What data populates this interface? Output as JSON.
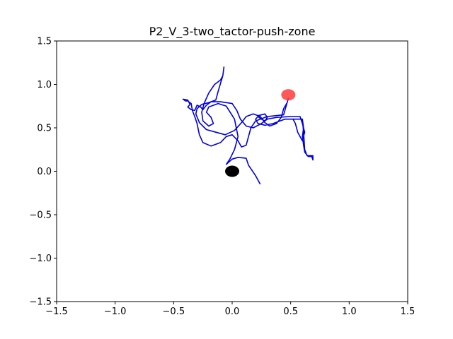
{
  "chart_data": {
    "type": "line",
    "title": "P2_V_3-two_tactor-push-zone",
    "xlabel": "",
    "ylabel": "",
    "xlim": [
      -1.5,
      1.5
    ],
    "ylim": [
      -1.5,
      1.5
    ],
    "xticks": [
      -1.5,
      -1.0,
      -0.5,
      0.0,
      0.5,
      1.0,
      1.5
    ],
    "yticks": [
      -1.5,
      -1.0,
      -0.5,
      0.0,
      0.5,
      1.0,
      1.5
    ],
    "xtick_labels": [
      "−1.5",
      "−1.0",
      "−0.5",
      "0.0",
      "0.5",
      "1.0",
      "1.5"
    ],
    "ytick_labels": [
      "−1.5",
      "−1.0",
      "−0.5",
      "0.0",
      "0.5",
      "1.0",
      "1.5"
    ],
    "grid": false,
    "colors": {
      "trajectory": "#0000dd",
      "start_marker": "#000000",
      "target_marker": "#ff3b3b"
    },
    "series": [
      {
        "points": [
          [
            0.24,
            -0.15
          ],
          [
            0.2,
            -0.05
          ],
          [
            0.14,
            0.07
          ],
          [
            0.12,
            0.15
          ],
          [
            0.05,
            0.16
          ],
          [
            0.0,
            0.14
          ],
          [
            -0.05,
            0.08
          ],
          [
            -0.02,
            0.14
          ],
          [
            0.02,
            0.25
          ],
          [
            0.05,
            0.4
          ],
          [
            0.02,
            0.6
          ],
          [
            -0.05,
            0.75
          ],
          [
            -0.12,
            0.78
          ],
          [
            -0.2,
            0.74
          ],
          [
            -0.22,
            0.68
          ],
          [
            -0.18,
            0.62
          ],
          [
            -0.16,
            0.55
          ],
          [
            -0.2,
            0.52
          ],
          [
            -0.25,
            0.58
          ],
          [
            -0.26,
            0.68
          ],
          [
            -0.24,
            0.78
          ],
          [
            -0.2,
            0.9
          ],
          [
            -0.15,
            1.0
          ],
          [
            -0.1,
            1.05
          ],
          [
            -0.08,
            1.1
          ],
          [
            -0.07,
            1.2
          ],
          [
            -0.08,
            1.1
          ],
          [
            -0.12,
            0.92
          ],
          [
            -0.14,
            0.82
          ],
          [
            -0.2,
            0.79
          ],
          [
            -0.26,
            0.77
          ],
          [
            -0.3,
            0.72
          ],
          [
            -0.31,
            0.66
          ],
          [
            -0.28,
            0.56
          ],
          [
            -0.22,
            0.48
          ],
          [
            -0.14,
            0.45
          ],
          [
            -0.06,
            0.42
          ],
          [
            0.02,
            0.47
          ],
          [
            0.08,
            0.56
          ],
          [
            0.12,
            0.63
          ],
          [
            0.18,
            0.66
          ],
          [
            0.24,
            0.63
          ],
          [
            0.28,
            0.56
          ],
          [
            0.32,
            0.52
          ],
          [
            0.38,
            0.55
          ],
          [
            0.42,
            0.62
          ],
          [
            0.44,
            0.72
          ],
          [
            0.47,
            0.79
          ],
          [
            0.48,
            0.84
          ],
          [
            0.44,
            0.65
          ],
          [
            0.3,
            0.63
          ],
          [
            0.2,
            0.58
          ],
          [
            0.16,
            0.5
          ],
          [
            0.14,
            0.4
          ],
          [
            0.12,
            0.3
          ],
          [
            0.08,
            0.28
          ],
          [
            0.05,
            0.35
          ],
          [
            0.0,
            0.42
          ],
          [
            -0.05,
            0.4
          ],
          [
            -0.1,
            0.33
          ],
          [
            -0.18,
            0.29
          ],
          [
            -0.25,
            0.33
          ],
          [
            -0.28,
            0.42
          ],
          [
            -0.3,
            0.55
          ],
          [
            -0.32,
            0.63
          ],
          [
            -0.34,
            0.7
          ],
          [
            -0.35,
            0.78
          ],
          [
            -0.38,
            0.81
          ],
          [
            -0.4,
            0.81
          ],
          [
            -0.42,
            0.83
          ],
          [
            -0.38,
            0.82
          ],
          [
            -0.36,
            0.77
          ],
          [
            -0.38,
            0.74
          ],
          [
            -0.35,
            0.71
          ],
          [
            -0.32,
            0.7
          ],
          [
            -0.3,
            0.76
          ],
          [
            -0.27,
            0.74
          ],
          [
            -0.25,
            0.71
          ],
          [
            -0.22,
            0.76
          ],
          [
            -0.18,
            0.8
          ],
          [
            -0.1,
            0.8
          ],
          [
            0.0,
            0.78
          ],
          [
            0.04,
            0.7
          ],
          [
            0.07,
            0.6
          ],
          [
            0.12,
            0.52
          ],
          [
            0.18,
            0.5
          ],
          [
            0.25,
            0.55
          ],
          [
            0.3,
            0.6
          ],
          [
            0.38,
            0.62
          ],
          [
            0.5,
            0.63
          ],
          [
            0.58,
            0.63
          ],
          [
            0.6,
            0.55
          ],
          [
            0.62,
            0.45
          ],
          [
            0.6,
            0.35
          ],
          [
            0.56,
            0.45
          ],
          [
            0.54,
            0.55
          ],
          [
            0.52,
            0.6
          ],
          [
            0.6,
            0.6
          ],
          [
            0.61,
            0.5
          ],
          [
            0.6,
            0.4
          ],
          [
            0.61,
            0.3
          ],
          [
            0.62,
            0.22
          ],
          [
            0.65,
            0.17
          ],
          [
            0.68,
            0.17
          ],
          [
            0.69,
            0.13
          ],
          [
            0.69,
            0.18
          ],
          [
            0.64,
            0.18
          ],
          [
            0.62,
            0.25
          ],
          [
            0.61,
            0.45
          ],
          [
            0.6,
            0.6
          ],
          [
            0.55,
            0.6
          ],
          [
            0.45,
            0.6
          ],
          [
            0.35,
            0.55
          ],
          [
            0.28,
            0.53
          ],
          [
            0.22,
            0.55
          ],
          [
            0.2,
            0.6
          ],
          [
            0.22,
            0.63
          ],
          [
            0.25,
            0.6
          ],
          [
            0.28,
            0.58
          ],
          [
            0.3,
            0.62
          ],
          [
            0.28,
            0.66
          ],
          [
            0.22,
            0.64
          ]
        ]
      }
    ],
    "markers": [
      {
        "name": "start",
        "x": 0.0,
        "y": 0.0
      },
      {
        "name": "target",
        "x": 0.48,
        "y": 0.88
      }
    ]
  }
}
